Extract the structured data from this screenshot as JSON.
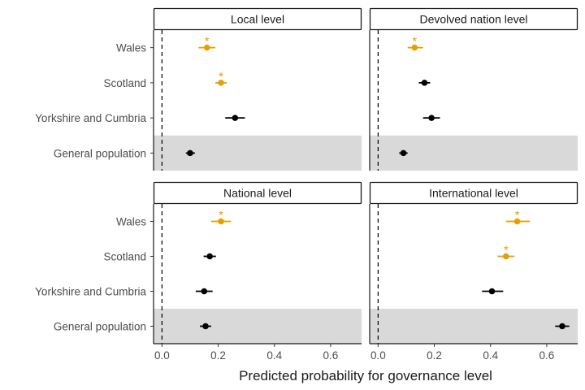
{
  "chart_data": {
    "type": "scatter",
    "subtype": "dot-and-whisker",
    "xlabel": "Predicted probability for governance level",
    "xlim": [
      -0.03,
      0.71
    ],
    "xticks": [
      0.0,
      0.2,
      0.4,
      0.6
    ],
    "xtick_labels": [
      "0.0",
      "0.2",
      "0.4",
      "0.6"
    ],
    "reference_line": 0,
    "categories": [
      "Wales",
      "Scotland",
      "Yorkshire and Cumbria",
      "General population"
    ],
    "shaded_category": "General population",
    "significance_marker": "*",
    "colors": {
      "significant": "#E69F00",
      "default": "#000000",
      "shade": "#d9d9d9"
    },
    "panels": [
      {
        "title": "Local level",
        "points": [
          {
            "category": "Wales",
            "value": 0.16,
            "low": 0.13,
            "high": 0.19,
            "significant": true
          },
          {
            "category": "Scotland",
            "value": 0.21,
            "low": 0.19,
            "high": 0.23,
            "significant": true
          },
          {
            "category": "Yorkshire and Cumbria",
            "value": 0.26,
            "low": 0.225,
            "high": 0.295,
            "significant": false
          },
          {
            "category": "General population",
            "value": 0.1,
            "low": 0.085,
            "high": 0.117,
            "significant": false
          }
        ]
      },
      {
        "title": "Devolved nation level",
        "points": [
          {
            "category": "Wales",
            "value": 0.13,
            "low": 0.105,
            "high": 0.16,
            "significant": true
          },
          {
            "category": "Scotland",
            "value": 0.165,
            "low": 0.145,
            "high": 0.185,
            "significant": false
          },
          {
            "category": "Yorkshire and Cumbria",
            "value": 0.19,
            "low": 0.16,
            "high": 0.22,
            "significant": false
          },
          {
            "category": "General population",
            "value": 0.09,
            "low": 0.075,
            "high": 0.105,
            "significant": false
          }
        ]
      },
      {
        "title": "National level",
        "points": [
          {
            "category": "Wales",
            "value": 0.21,
            "low": 0.175,
            "high": 0.245,
            "significant": true
          },
          {
            "category": "Scotland",
            "value": 0.17,
            "low": 0.148,
            "high": 0.192,
            "significant": false
          },
          {
            "category": "Yorkshire and Cumbria",
            "value": 0.15,
            "low": 0.12,
            "high": 0.18,
            "significant": false
          },
          {
            "category": "General population",
            "value": 0.155,
            "low": 0.135,
            "high": 0.175,
            "significant": false
          }
        ]
      },
      {
        "title": "International level",
        "points": [
          {
            "category": "Wales",
            "value": 0.495,
            "low": 0.455,
            "high": 0.54,
            "significant": true
          },
          {
            "category": "Scotland",
            "value": 0.455,
            "low": 0.425,
            "high": 0.485,
            "significant": true
          },
          {
            "category": "Yorkshire and Cumbria",
            "value": 0.405,
            "low": 0.37,
            "high": 0.445,
            "significant": false
          },
          {
            "category": "General population",
            "value": 0.655,
            "low": 0.63,
            "high": 0.68,
            "significant": false
          }
        ]
      }
    ]
  }
}
